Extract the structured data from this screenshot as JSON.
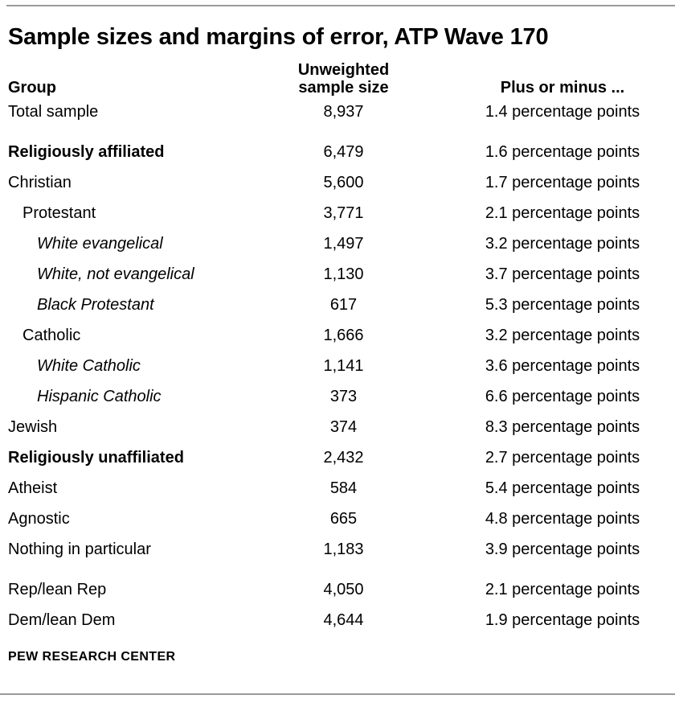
{
  "title": "Sample sizes and margins of error, ATP Wave 170",
  "footer": "PEW RESEARCH CENTER",
  "table": {
    "headers": {
      "group": "Group",
      "size": "Unweighted sample size",
      "margin": "Plus or minus ..."
    },
    "rows": [
      {
        "group": "Total sample",
        "size": "8,937",
        "margin": "1.4 percentage points",
        "style": "regular",
        "indent": 0,
        "gap_before": false
      },
      {
        "group": "Religiously affiliated",
        "size": "6,479",
        "margin": "1.6 percentage points",
        "style": "bold",
        "indent": 0,
        "gap_before": true
      },
      {
        "group": "Christian",
        "size": "5,600",
        "margin": "1.7 percentage points",
        "style": "regular",
        "indent": 0,
        "gap_before": false
      },
      {
        "group": "Protestant",
        "size": "3,771",
        "margin": "2.1 percentage points",
        "style": "regular",
        "indent": 1,
        "gap_before": false
      },
      {
        "group": "White evangelical",
        "size": "1,497",
        "margin": "3.2 percentage points",
        "style": "italic",
        "indent": 2,
        "gap_before": false
      },
      {
        "group": "White, not evangelical",
        "size": "1,130",
        "margin": "3.7 percentage points",
        "style": "italic",
        "indent": 2,
        "gap_before": false
      },
      {
        "group": "Black Protestant",
        "size": "617",
        "margin": "5.3 percentage points",
        "style": "italic",
        "indent": 2,
        "gap_before": false
      },
      {
        "group": "Catholic",
        "size": "1,666",
        "margin": "3.2 percentage points",
        "style": "regular",
        "indent": 1,
        "gap_before": false
      },
      {
        "group": "White Catholic",
        "size": "1,141",
        "margin": "3.6 percentage points",
        "style": "italic",
        "indent": 2,
        "gap_before": false
      },
      {
        "group": "Hispanic Catholic",
        "size": "373",
        "margin": "6.6 percentage points",
        "style": "italic",
        "indent": 2,
        "gap_before": false
      },
      {
        "group": "Jewish",
        "size": "374",
        "margin": "8.3 percentage points",
        "style": "regular",
        "indent": 0,
        "gap_before": false
      },
      {
        "group": "Religiously unaffiliated",
        "size": "2,432",
        "margin": "2.7 percentage points",
        "style": "bold",
        "indent": 0,
        "gap_before": false
      },
      {
        "group": "Atheist",
        "size": "584",
        "margin": "5.4 percentage points",
        "style": "regular",
        "indent": 0,
        "gap_before": false
      },
      {
        "group": "Agnostic",
        "size": "665",
        "margin": "4.8 percentage points",
        "style": "regular",
        "indent": 0,
        "gap_before": false
      },
      {
        "group": "Nothing in particular",
        "size": "1,183",
        "margin": "3.9 percentage points",
        "style": "regular",
        "indent": 0,
        "gap_before": false
      },
      {
        "group": "Rep/lean Rep",
        "size": "4,050",
        "margin": "2.1 percentage points",
        "style": "regular",
        "indent": 0,
        "gap_before": true
      },
      {
        "group": "Dem/lean Dem",
        "size": "4,644",
        "margin": "1.9 percentage points",
        "style": "regular",
        "indent": 0,
        "gap_before": false
      }
    ]
  },
  "chart_data": {
    "type": "table",
    "title": "Sample sizes and margins of error, ATP Wave 170",
    "columns": [
      "Group",
      "Unweighted sample size",
      "Plus or minus ... (percentage points)"
    ],
    "rows": [
      [
        "Total sample",
        8937,
        1.4
      ],
      [
        "Religiously affiliated",
        6479,
        1.6
      ],
      [
        "Christian",
        5600,
        1.7
      ],
      [
        "Protestant",
        3771,
        2.1
      ],
      [
        "White evangelical",
        1497,
        3.2
      ],
      [
        "White, not evangelical",
        1130,
        3.7
      ],
      [
        "Black Protestant",
        617,
        5.3
      ],
      [
        "Catholic",
        1666,
        3.2
      ],
      [
        "White Catholic",
        1141,
        3.6
      ],
      [
        "Hispanic Catholic",
        373,
        6.6
      ],
      [
        "Jewish",
        374,
        8.3
      ],
      [
        "Religiously unaffiliated",
        2432,
        2.7
      ],
      [
        "Atheist",
        584,
        5.4
      ],
      [
        "Agnostic",
        665,
        4.8
      ],
      [
        "Nothing in particular",
        1183,
        3.9
      ],
      [
        "Rep/lean Rep",
        4050,
        2.1
      ],
      [
        "Dem/lean Dem",
        4644,
        1.9
      ]
    ],
    "source_label": "PEW RESEARCH CENTER"
  }
}
